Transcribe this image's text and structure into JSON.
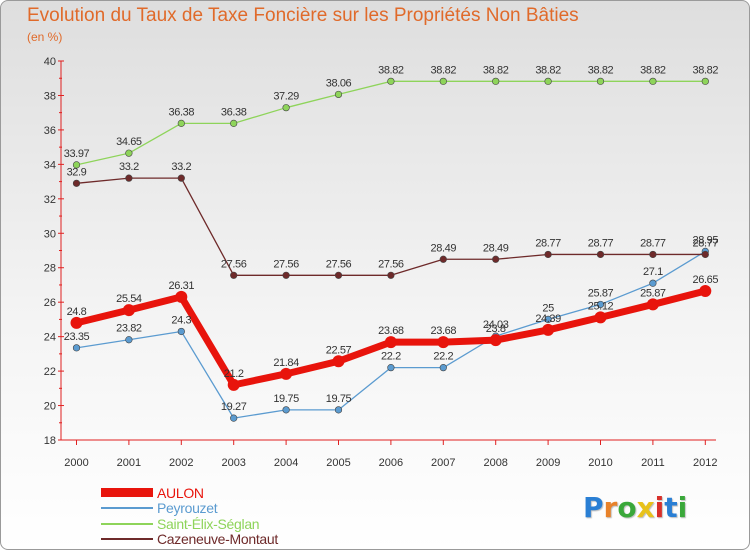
{
  "title": "Evolution du Taux de Taxe Foncière sur les Propriétés Non Bâties",
  "subtitle": "(en %)",
  "logo": {
    "letters": [
      "P",
      "r",
      "o",
      "x",
      "i",
      "t",
      "i"
    ],
    "colors": [
      "#2a7fd4",
      "#e8822a",
      "#3aa83a",
      "#e8c21a",
      "#d8302a",
      "#2a7fd4",
      "#3aa83a"
    ]
  },
  "chart_data": {
    "type": "line",
    "title": "Evolution du Taux de Taxe Foncière sur les Propriétés Non Bâties",
    "ylabel": "(en %)",
    "xlabel": "",
    "x": [
      "2000",
      "2001",
      "2002",
      "2003",
      "2004",
      "2005",
      "2006",
      "2007",
      "2008",
      "2009",
      "2010",
      "2011",
      "2012"
    ],
    "ylim": [
      18,
      40
    ],
    "yticks": [
      "18",
      "20",
      "22",
      "24",
      "26",
      "28",
      "30",
      "32",
      "34",
      "36",
      "38",
      "40"
    ],
    "grid": false,
    "series": [
      {
        "name": "AULON",
        "color": "#e8140c",
        "bold": true,
        "values": [
          24.8,
          25.54,
          26.31,
          21.2,
          21.84,
          22.57,
          23.68,
          23.68,
          23.8,
          24.39,
          25.12,
          25.87,
          26.65
        ],
        "labels": [
          "24.8",
          "25.54",
          "26.31",
          "21.2",
          "21.84",
          "22.57",
          "23.68",
          "23.68",
          "23.8",
          "24.39",
          "25.12",
          "25.87",
          "26.65"
        ]
      },
      {
        "name": "Peyrouzet",
        "color": "#5b9bd0",
        "bold": false,
        "values": [
          23.35,
          23.82,
          24.3,
          19.27,
          19.75,
          19.75,
          22.2,
          22.2,
          24.03,
          25,
          25.87,
          27.1,
          28.95
        ],
        "labels": [
          "23.35",
          "23.82",
          "24.3",
          "19.27",
          "19.75",
          "19.75",
          "22.2",
          "22.2",
          "24.03",
          "25",
          "25.87",
          "27.1",
          "28.95"
        ]
      },
      {
        "name": "Saint-Élix-Séglan",
        "color": "#8ed45a",
        "bold": false,
        "values": [
          33.97,
          34.65,
          36.38,
          36.38,
          37.29,
          38.06,
          38.82,
          38.82,
          38.82,
          38.82,
          38.82,
          38.82,
          38.82
        ],
        "labels": [
          "33.97",
          "34.65",
          "36.38",
          "36.38",
          "37.29",
          "38.06",
          "38.82",
          "38.82",
          "38.82",
          "38.82",
          "38.82",
          "38.82",
          "38.82"
        ]
      },
      {
        "name": "Cazeneuve-Montaut",
        "color": "#6e2a2a",
        "bold": false,
        "values": [
          32.9,
          33.2,
          33.2,
          27.56,
          27.56,
          27.56,
          27.56,
          28.49,
          28.49,
          28.77,
          28.77,
          28.77,
          28.77
        ],
        "labels": [
          "32.9",
          "33.2",
          "33.2",
          "27.56",
          "27.56",
          "27.56",
          "27.56",
          "28.49",
          "28.49",
          "28.77",
          "28.77",
          "28.77",
          "28.77"
        ]
      }
    ],
    "legend_position": "bottom-left"
  }
}
